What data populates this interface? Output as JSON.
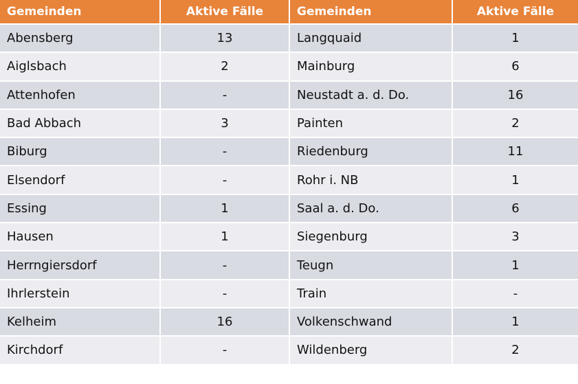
{
  "table": {
    "header": [
      "Gemeinden",
      "Aktive Fälle",
      "Gemeinden",
      "Aktive Fälle"
    ],
    "rows": [
      [
        "Abensberg",
        "13",
        "Langquaid",
        "1"
      ],
      [
        "Aiglsbach",
        "2",
        "Mainburg",
        "6"
      ],
      [
        "Attenhofen",
        "-",
        "Neustadt a. d. Do.",
        "16"
      ],
      [
        "Bad Abbach",
        "3",
        "Painten",
        "2"
      ],
      [
        "Biburg",
        "-",
        "Riedenburg",
        "11"
      ],
      [
        "Elsendorf",
        "-",
        "Rohr i. NB",
        "1"
      ],
      [
        "Essing",
        "1",
        "Saal a. d. Do.",
        "6"
      ],
      [
        "Hausen",
        "1",
        "Siegenburg",
        "3"
      ],
      [
        "Herrngiersdorf",
        "-",
        "Teugn",
        "1"
      ],
      [
        "Ihrlerstein",
        "-",
        "Train",
        "-"
      ],
      [
        "Kelheim",
        "16",
        "Volkenschwand",
        "1"
      ],
      [
        "Kirchdorf",
        "-",
        "Wildenberg",
        "2"
      ]
    ]
  }
}
